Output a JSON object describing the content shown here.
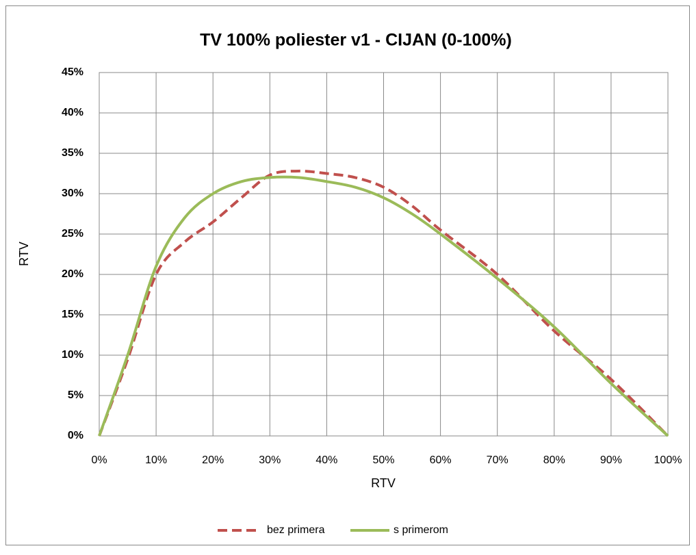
{
  "chart_data": {
    "type": "line",
    "title": "TV 100% poliester v1 - CIJAN (0-100%)",
    "x_label": "RTV",
    "y_label": "RTV",
    "xlim": [
      0,
      100
    ],
    "xticks": [
      {
        "value": 0,
        "label": "0%"
      },
      {
        "value": 10,
        "label": "10%"
      },
      {
        "value": 20,
        "label": "20%"
      },
      {
        "value": 30,
        "label": "30%"
      },
      {
        "value": 40,
        "label": "40%"
      },
      {
        "value": 50,
        "label": "50%"
      },
      {
        "value": 60,
        "label": "60%"
      },
      {
        "value": 70,
        "label": "70%"
      },
      {
        "value": 80,
        "label": "80%"
      },
      {
        "value": 90,
        "label": "90%"
      },
      {
        "value": 100,
        "label": "100%"
      }
    ],
    "ylim": [
      0,
      45
    ],
    "yticks": [
      {
        "value": 0,
        "label": "0%"
      },
      {
        "value": 5,
        "label": "5%"
      },
      {
        "value": 10,
        "label": "10%"
      },
      {
        "value": 15,
        "label": "15%"
      },
      {
        "value": 20,
        "label": "20%"
      },
      {
        "value": 25,
        "label": "25%"
      },
      {
        "value": 30,
        "label": "30%"
      },
      {
        "value": 35,
        "label": "35%"
      },
      {
        "value": 40,
        "label": "40%"
      },
      {
        "value": 45,
        "label": "45%"
      }
    ],
    "grid": true,
    "legend": "bottom",
    "series": [
      {
        "name": "bez primera",
        "color": "#c0504d",
        "dashed": true,
        "x": [
          0,
          5,
          10,
          15,
          20,
          25,
          30,
          35,
          40,
          45,
          50,
          55,
          60,
          70,
          80,
          90,
          100
        ],
        "values": [
          0,
          9.5,
          20,
          24,
          26.5,
          29.5,
          32.3,
          32.8,
          32.5,
          32,
          30.8,
          28.5,
          25.5,
          20,
          13,
          7,
          0
        ]
      },
      {
        "name": "s primerom",
        "color": "#9bbb59",
        "dashed": false,
        "x": [
          0,
          5,
          10,
          15,
          20,
          25,
          30,
          35,
          40,
          45,
          50,
          55,
          60,
          70,
          80,
          90,
          100
        ],
        "values": [
          0,
          10,
          21,
          27,
          30,
          31.5,
          32,
          32,
          31.5,
          30.8,
          29.5,
          27.5,
          25,
          19.5,
          13.5,
          6.5,
          0
        ]
      }
    ]
  }
}
